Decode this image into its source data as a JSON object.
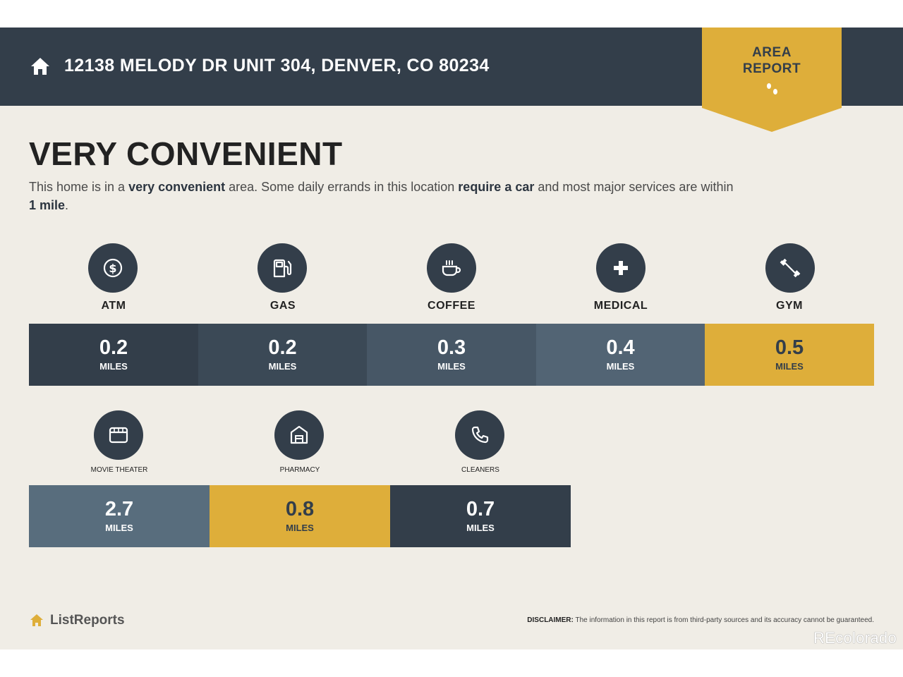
{
  "header": {
    "address": "12138 MELODY DR UNIT 304, DENVER, CO 80234",
    "ribbon_line1": "AREA",
    "ribbon_line2": "REPORT"
  },
  "summary": {
    "title": "VERY CONVENIENT",
    "intro_1": "This home is in a ",
    "intro_b1": "very convenient",
    "intro_2": " area. Some daily errands in this location ",
    "intro_b2": "require a car",
    "intro_3": " and most major services are within ",
    "intro_b3": "1 mile",
    "intro_4": "."
  },
  "amenities_row1": [
    {
      "label": "ATM",
      "distance": "0.2",
      "unit": "MILES",
      "icon": "dollar-icon",
      "color": "#333e4a"
    },
    {
      "label": "GAS",
      "distance": "0.2",
      "unit": "MILES",
      "icon": "gas-pump-icon",
      "color": "#3b4956"
    },
    {
      "label": "COFFEE",
      "distance": "0.3",
      "unit": "MILES",
      "icon": "coffee-cup-icon",
      "color": "#475766"
    },
    {
      "label": "MEDICAL",
      "distance": "0.4",
      "unit": "MILES",
      "icon": "medical-cross-icon",
      "color": "#526474"
    },
    {
      "label": "GYM",
      "distance": "0.5",
      "unit": "MILES",
      "icon": "dumbbell-icon",
      "color": "#deae3a"
    }
  ],
  "amenities_row2": [
    {
      "label": "MOVIE THEATER",
      "distance": "2.7",
      "unit": "MILES",
      "icon": "movie-icon",
      "color": "#586d7d"
    },
    {
      "label": "PHARMACY",
      "distance": "0.8",
      "unit": "MILES",
      "icon": "pharmacy-icon",
      "color": "#deae3a"
    },
    {
      "label": "CLEANERS",
      "distance": "0.7",
      "unit": "MILES",
      "icon": "phone-icon",
      "color": "#333e4a"
    }
  ],
  "footer": {
    "brand": "ListReports",
    "disclaimer_label": "DISCLAIMER:",
    "disclaimer_text": " The information in this report is from third-party sources and its accuracy cannot be guaranteed."
  },
  "watermark": "REcolorado"
}
